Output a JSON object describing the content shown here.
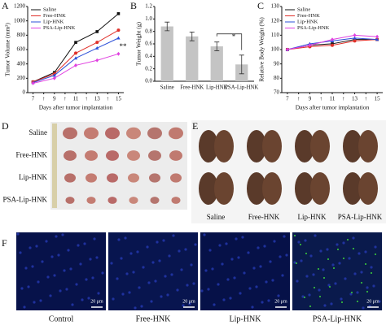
{
  "panel_labels": [
    "A",
    "B",
    "C",
    "D",
    "E",
    "F"
  ],
  "chart_data": [
    {
      "type": "line",
      "y_label": "Tumor Volume (mm³)",
      "x_label": "Days after tumor implantation",
      "x": [
        7,
        9,
        11,
        13,
        15
      ],
      "xlim": [
        6.5,
        15.5
      ],
      "xticks": [
        7,
        {
          "value": 8,
          "label": "↑"
        },
        9,
        {
          "value": 10,
          "label": "↑"
        },
        11,
        {
          "value": 12,
          "label": "↑"
        },
        13,
        {
          "value": 14,
          "label": "↑"
        },
        15
      ],
      "ylim": [
        0,
        1200
      ],
      "yticks": [
        0,
        200,
        400,
        600,
        800,
        1000,
        1200
      ],
      "series": [
        {
          "name": "Saline",
          "color": "#111111",
          "values": [
            150,
            280,
            700,
            850,
            1100
          ]
        },
        {
          "name": "Free-HNK",
          "color": "#e0302a",
          "values": [
            150,
            260,
            550,
            700,
            870
          ]
        },
        {
          "name": "Lip-HNK",
          "color": "#2b4fd8",
          "values": [
            140,
            240,
            480,
            620,
            760
          ]
        },
        {
          "name": "PSA-Lip-HNK",
          "color": "#e040e0",
          "values": [
            130,
            200,
            380,
            450,
            540
          ]
        }
      ],
      "annotation": "**"
    },
    {
      "type": "bar",
      "y_label": "Tumor Weight (g)",
      "categories": [
        "Saline",
        "Free-HNK",
        "Lip-HNK",
        "PSA-Lip-HNK"
      ],
      "values": [
        0.88,
        0.72,
        0.56,
        0.27
      ],
      "errors": [
        0.07,
        0.07,
        0.07,
        0.15
      ],
      "color": "#c4c4c4",
      "ylim": [
        0,
        1.2
      ],
      "yticks": [
        {
          "value": 0,
          "label": "0.0"
        },
        0.2,
        0.4,
        0.6,
        0.8,
        {
          "value": 1,
          "label": "1.0"
        },
        1.2
      ],
      "annotation": "*"
    },
    {
      "type": "line",
      "y_label": "Relative Body Weight (%)",
      "x_label": "Days after tumor implantation",
      "x": [
        7,
        9,
        11,
        13,
        15
      ],
      "xlim": [
        6.5,
        15.5
      ],
      "xticks": [
        7,
        {
          "value": 8,
          "label": "↑"
        },
        9,
        {
          "value": 10,
          "label": "↑"
        },
        11,
        {
          "value": 12,
          "label": "↑"
        },
        13,
        {
          "value": 14,
          "label": "↑"
        },
        15
      ],
      "ylim": [
        70,
        130
      ],
      "yticks": [
        70,
        80,
        90,
        100,
        110,
        120,
        130
      ],
      "series": [
        {
          "name": "Saline",
          "color": "#111111",
          "values": [
            100,
            103,
            104,
            107,
            107
          ]
        },
        {
          "name": "Free-HNK",
          "color": "#e0302a",
          "values": [
            100,
            102,
            103,
            106,
            107
          ]
        },
        {
          "name": "Lip-HNK",
          "color": "#2b4fd8",
          "values": [
            100,
            104,
            106,
            108,
            107
          ]
        },
        {
          "name": "PSA-Lip-HNK",
          "color": "#e040e0",
          "values": [
            100,
            103,
            107,
            110,
            109
          ]
        }
      ]
    }
  ],
  "tumor_photo": {
    "rows": [
      "Saline",
      "Free-HNK",
      "Lip-HNK",
      "PSA-Lip-HNK"
    ]
  },
  "lung_photo": {
    "labels": [
      "Saline",
      "Free-HNK",
      "Lip-HNK",
      "PSA-Lip-HNK"
    ]
  },
  "fluorescence": {
    "labels": [
      "Control",
      "Free-HNK",
      "Lip-HNK",
      "PSA-Lip-HNK"
    ],
    "scale_bar": "20 μm"
  }
}
